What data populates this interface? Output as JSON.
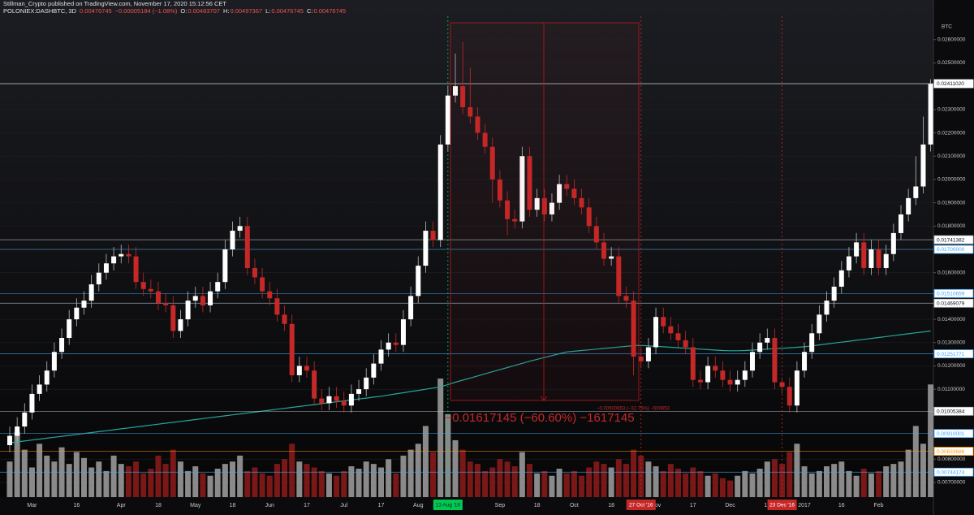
{
  "header": {
    "publisher": "Stillman_Crypto published on TradingView.com, November 17, 2020 15:12:56 CET",
    "symbol": "POLONIEX:DASHBTC, 3D",
    "last": "0.00476745",
    "change": "−0.00005184 (−1.08%)",
    "ohlc": [
      {
        "key": "O:",
        "value": "0.00483707"
      },
      {
        "key": "H:",
        "value": "0.00497367"
      },
      {
        "key": "L:",
        "value": "0.00476745"
      },
      {
        "key": "C:",
        "value": "0.00476745"
      }
    ]
  },
  "chart_data": {
    "type": "candlestick",
    "currency": "BTC",
    "categories": [
      null,
      null,
      null,
      "Mar",
      null,
      null,
      null,
      null,
      null,
      "16",
      null,
      null,
      null,
      null,
      null,
      "Apr",
      null,
      null,
      null,
      null,
      "18",
      null,
      null,
      null,
      null,
      "May",
      null,
      null,
      null,
      null,
      "18",
      null,
      null,
      null,
      null,
      "Jun",
      null,
      null,
      null,
      null,
      "17",
      null,
      null,
      null,
      null,
      "Jul",
      null,
      null,
      null,
      null,
      "17",
      null,
      null,
      null,
      null,
      "Aug",
      null,
      null,
      null,
      "13 Aug '16",
      null,
      null,
      null,
      null,
      null,
      null,
      "Sep",
      null,
      null,
      null,
      null,
      "18",
      null,
      null,
      null,
      null,
      "Oct",
      null,
      null,
      null,
      null,
      "18",
      null,
      null,
      null,
      "27 Oct '16",
      null,
      "Nov",
      null,
      null,
      null,
      null,
      "17",
      null,
      null,
      null,
      null,
      "Dec",
      null,
      null,
      null,
      null,
      "17",
      null,
      "23 Dec '16",
      null,
      null,
      "2017",
      null,
      null,
      null,
      null,
      "16",
      null,
      null,
      null,
      null,
      "Feb",
      null,
      null,
      null,
      null,
      null,
      null,
      null
    ],
    "open": [
      0.0086,
      0.009,
      0.0094,
      0.01,
      0.0108,
      0.0112,
      0.0118,
      0.0126,
      0.0132,
      0.014,
      0.0145,
      0.0148,
      0.0155,
      0.016,
      0.0164,
      0.0167,
      0.0168,
      0.0167,
      0.0156,
      0.0153,
      0.0152,
      0.0147,
      0.0146,
      0.0135,
      0.014,
      0.0148,
      0.015,
      0.0146,
      0.0152,
      0.0156,
      0.017,
      0.0178,
      0.018,
      0.0162,
      0.0158,
      0.0152,
      0.0149,
      0.0142,
      0.0138,
      0.0116,
      0.012,
      0.0118,
      0.0106,
      0.0104,
      0.0107,
      0.0105,
      0.0103,
      0.0108,
      0.011,
      0.0115,
      0.0121,
      0.0127,
      0.013,
      0.0129,
      0.014,
      0.015,
      0.0163,
      0.0178,
      0.0174,
      0.0215,
      0.0236,
      0.024,
      0.0231,
      0.0227,
      0.022,
      0.0214,
      0.02,
      0.0191,
      0.0183,
      0.0182,
      0.021,
      0.0187,
      0.0192,
      0.0185,
      0.019,
      0.0198,
      0.0196,
      0.0192,
      0.0188,
      0.018,
      0.0173,
      0.0166,
      0.0167,
      0.015,
      0.0148,
      0.0124,
      0.0122,
      0.0128,
      0.0141,
      0.0137,
      0.0134,
      0.0131,
      0.0128,
      0.0114,
      0.0113,
      0.012,
      0.0118,
      0.0114,
      0.0112,
      0.0114,
      0.0118,
      0.0126,
      0.013,
      0.0132,
      0.0113,
      0.0111,
      0.0103,
      0.0118,
      0.0126,
      0.0134,
      0.0142,
      0.0148,
      0.0154,
      0.0161,
      0.0167,
      0.0173,
      0.0162,
      0.017,
      0.0162,
      0.0168,
      0.0177,
      0.0185,
      0.0192,
      0.0197,
      0.0215
    ],
    "high": [
      0.0094,
      0.0098,
      0.0104,
      0.0112,
      0.0116,
      0.0122,
      0.013,
      0.0136,
      0.0144,
      0.0149,
      0.0152,
      0.0159,
      0.0164,
      0.0168,
      0.0171,
      0.0172,
      0.0172,
      0.0171,
      0.016,
      0.0157,
      0.0156,
      0.0151,
      0.015,
      0.0144,
      0.0152,
      0.0154,
      0.0154,
      0.0156,
      0.016,
      0.0174,
      0.0182,
      0.0184,
      0.0184,
      0.0166,
      0.0162,
      0.0156,
      0.0153,
      0.0146,
      0.0142,
      0.0124,
      0.0124,
      0.0122,
      0.011,
      0.0111,
      0.0111,
      0.0109,
      0.0112,
      0.0114,
      0.0119,
      0.0125,
      0.0131,
      0.0134,
      0.0134,
      0.0144,
      0.0154,
      0.0167,
      0.0182,
      0.0182,
      0.0219,
      0.024,
      0.0254,
      0.0259,
      0.0248,
      0.0231,
      0.0224,
      0.0218,
      0.0204,
      0.0195,
      0.0187,
      0.0214,
      0.0214,
      0.0196,
      0.0196,
      0.0194,
      0.0202,
      0.0202,
      0.02,
      0.0196,
      0.0192,
      0.0184,
      0.0177,
      0.0171,
      0.0171,
      0.0154,
      0.0152,
      0.0128,
      0.0132,
      0.0145,
      0.0145,
      0.0141,
      0.0138,
      0.0135,
      0.0132,
      0.0118,
      0.0124,
      0.0124,
      0.0122,
      0.0118,
      0.0118,
      0.0122,
      0.013,
      0.0134,
      0.0136,
      0.0136,
      0.0115,
      0.0115,
      0.0122,
      0.013,
      0.0138,
      0.0146,
      0.0152,
      0.0158,
      0.0165,
      0.0171,
      0.0177,
      0.0177,
      0.0174,
      0.0174,
      0.0172,
      0.0181,
      0.0189,
      0.0196,
      0.021,
      0.0227,
      0.0243
    ],
    "low": [
      0.0083,
      0.0087,
      0.0091,
      0.0097,
      0.0105,
      0.0109,
      0.0115,
      0.0123,
      0.0129,
      0.0137,
      0.0142,
      0.0145,
      0.0152,
      0.0157,
      0.0161,
      0.0164,
      0.0164,
      0.0153,
      0.015,
      0.0149,
      0.0144,
      0.0143,
      0.0132,
      0.0132,
      0.0137,
      0.0145,
      0.0143,
      0.0143,
      0.0149,
      0.0153,
      0.0167,
      0.0175,
      0.0159,
      0.0155,
      0.0149,
      0.0146,
      0.0139,
      0.0135,
      0.0113,
      0.0113,
      0.0115,
      0.0103,
      0.0101,
      0.0101,
      0.0102,
      0.01,
      0.01,
      0.0105,
      0.0107,
      0.0112,
      0.0118,
      0.0124,
      0.0126,
      0.0126,
      0.0137,
      0.0147,
      0.016,
      0.0171,
      0.0171,
      0.0212,
      0.0233,
      0.0228,
      0.0224,
      0.0217,
      0.0211,
      0.019,
      0.0188,
      0.0176,
      0.0179,
      0.0179,
      0.0184,
      0.0184,
      0.0182,
      0.0182,
      0.0187,
      0.0193,
      0.0189,
      0.0185,
      0.0177,
      0.017,
      0.0163,
      0.0163,
      0.0147,
      0.0145,
      0.0116,
      0.0119,
      0.0119,
      0.0125,
      0.0134,
      0.0131,
      0.0128,
      0.0125,
      0.0111,
      0.011,
      0.011,
      0.0115,
      0.0111,
      0.0109,
      0.0109,
      0.0111,
      0.0115,
      0.0123,
      0.0127,
      0.011,
      0.0108,
      0.01,
      0.01,
      0.0115,
      0.0123,
      0.0131,
      0.0139,
      0.0145,
      0.0151,
      0.0158,
      0.0164,
      0.0159,
      0.0159,
      0.0159,
      0.0159,
      0.0165,
      0.0174,
      0.0182,
      0.0189,
      0.0194,
      0.0212
    ],
    "close": [
      0.009,
      0.0094,
      0.01,
      0.0108,
      0.0112,
      0.0118,
      0.0126,
      0.0132,
      0.014,
      0.0145,
      0.0148,
      0.0155,
      0.016,
      0.0164,
      0.0167,
      0.0168,
      0.0167,
      0.0156,
      0.0153,
      0.0152,
      0.0147,
      0.0146,
      0.0135,
      0.014,
      0.0148,
      0.015,
      0.0146,
      0.0152,
      0.0156,
      0.017,
      0.0178,
      0.018,
      0.0162,
      0.0158,
      0.0152,
      0.0149,
      0.0142,
      0.0138,
      0.0116,
      0.012,
      0.0118,
      0.0106,
      0.0104,
      0.0107,
      0.0105,
      0.0103,
      0.0108,
      0.011,
      0.0115,
      0.0121,
      0.0127,
      0.013,
      0.0129,
      0.014,
      0.015,
      0.0163,
      0.0178,
      0.0174,
      0.0215,
      0.0236,
      0.024,
      0.0231,
      0.0227,
      0.022,
      0.0214,
      0.02,
      0.0191,
      0.0183,
      0.0182,
      0.021,
      0.0187,
      0.0192,
      0.0185,
      0.019,
      0.0198,
      0.0196,
      0.0192,
      0.0188,
      0.018,
      0.0173,
      0.0166,
      0.0167,
      0.015,
      0.0148,
      0.0124,
      0.0122,
      0.0128,
      0.0141,
      0.0137,
      0.0134,
      0.0131,
      0.0128,
      0.0114,
      0.0113,
      0.012,
      0.0118,
      0.0114,
      0.0112,
      0.0114,
      0.0118,
      0.0126,
      0.013,
      0.0132,
      0.0113,
      0.0111,
      0.0103,
      0.0118,
      0.0126,
      0.0134,
      0.0142,
      0.0148,
      0.0154,
      0.0161,
      0.0167,
      0.0173,
      0.0162,
      0.017,
      0.0162,
      0.0168,
      0.0177,
      0.0185,
      0.0192,
      0.0197,
      0.0215,
      0.0241
    ],
    "volume": [
      30,
      55,
      40,
      25,
      45,
      35,
      30,
      42,
      28,
      38,
      33,
      25,
      30,
      22,
      35,
      28,
      26,
      30,
      20,
      24,
      35,
      28,
      40,
      30,
      22,
      26,
      20,
      18,
      24,
      28,
      30,
      35,
      22,
      25,
      20,
      18,
      28,
      32,
      45,
      30,
      28,
      25,
      22,
      20,
      18,
      22,
      26,
      24,
      30,
      28,
      25,
      32,
      20,
      35,
      40,
      45,
      60,
      38,
      100,
      70,
      48,
      40,
      30,
      28,
      22,
      25,
      32,
      30,
      26,
      38,
      28,
      20,
      22,
      18,
      24,
      20,
      22,
      18,
      25,
      30,
      28,
      25,
      32,
      28,
      40,
      35,
      30,
      26,
      22,
      28,
      24,
      20,
      25,
      22,
      18,
      20,
      16,
      14,
      18,
      22,
      20,
      24,
      30,
      32,
      28,
      38,
      45,
      26,
      20,
      22,
      26,
      28,
      30,
      22,
      18,
      24,
      20,
      22,
      26,
      28,
      30,
      40,
      60,
      45,
      95
    ],
    "volume_lim": [
      0,
      100
    ],
    "up_color": "#ffffff",
    "down_color": "#c62828",
    "volume_up_color": "#8a8a8a",
    "volume_down_color": "#7a1818",
    "ma": {
      "color": "#26a69a",
      "values": [
        0.0087,
        0.00874,
        0.00878,
        0.00882,
        0.00886,
        0.0089,
        0.00894,
        0.00898,
        0.00902,
        0.00906,
        0.0091,
        0.00914,
        0.00918,
        0.00922,
        0.00926,
        0.0093,
        0.00934,
        0.00938,
        0.00942,
        0.00946,
        0.0095,
        0.00954,
        0.00958,
        0.00962,
        0.00966,
        0.0097,
        0.00974,
        0.00978,
        0.00982,
        0.00986,
        0.0099,
        0.00994,
        0.00998,
        0.01002,
        0.01006,
        0.0101,
        0.01014,
        0.01018,
        0.01022,
        0.01026,
        0.0103,
        0.01034,
        0.01038,
        0.01042,
        0.01046,
        0.0105,
        0.01054,
        0.01058,
        0.01062,
        0.01066,
        0.0107,
        0.01075,
        0.0108,
        0.01085,
        0.0109,
        0.01095,
        0.011,
        0.01105,
        0.0111,
        0.0112,
        0.0113,
        0.01139,
        0.01148,
        0.01157,
        0.01166,
        0.01175,
        0.01184,
        0.01193,
        0.01202,
        0.01211,
        0.0122,
        0.01228,
        0.01236,
        0.01244,
        0.01252,
        0.0126,
        0.01263,
        0.01266,
        0.01269,
        0.01272,
        0.01275,
        0.01278,
        0.01281,
        0.01284,
        0.01287,
        0.01288,
        0.01286,
        0.01284,
        0.01282,
        0.0128,
        0.01278,
        0.01276,
        0.01274,
        0.01272,
        0.0127,
        0.01268,
        0.01266,
        0.01265,
        0.01265,
        0.01266,
        0.01268,
        0.0127,
        0.01272,
        0.01274,
        0.01276,
        0.01278,
        0.0128,
        0.01282,
        0.01286,
        0.0129,
        0.01294,
        0.01298,
        0.01302,
        0.01306,
        0.0131,
        0.01314,
        0.01318,
        0.01322,
        0.01326,
        0.0133,
        0.01334,
        0.01338,
        0.01342,
        0.01346,
        0.0135
      ]
    },
    "ylim": [
      0.00637,
      0.0277
    ],
    "yticks": [
      {
        "value": 0.026,
        "label": "0.02600000"
      },
      {
        "value": 0.025,
        "label": "0.02500000"
      },
      {
        "value": 0.023,
        "label": "0.02300000"
      },
      {
        "value": 0.022,
        "label": "0.02200000"
      },
      {
        "value": 0.021,
        "label": "0.02100000"
      },
      {
        "value": 0.02,
        "label": "0.02000000"
      },
      {
        "value": 0.019,
        "label": "0.01900000"
      },
      {
        "value": 0.018,
        "label": "0.01800000"
      },
      {
        "value": 0.016,
        "label": "0.01600000"
      },
      {
        "value": 0.014,
        "label": "0.01400000"
      },
      {
        "value": 0.013,
        "label": "0.01300000"
      },
      {
        "value": 0.012,
        "label": "0.01200000"
      },
      {
        "value": 0.011,
        "label": "0.01100000"
      },
      {
        "value": 0.008,
        "label": "0.00800000"
      },
      {
        "value": 0.007,
        "label": "0.00700000"
      }
    ],
    "grid": true,
    "price_lines": [
      {
        "value": 0.0241102,
        "label": "0.02411020",
        "color": "#ffffff"
      },
      {
        "value": 0.01741382,
        "label": "0.01741382",
        "color": "#b0bec5"
      },
      {
        "value": 0.017,
        "label": "0.01700000",
        "color": "#42a5f5"
      },
      {
        "value": 0.01510659,
        "label": "0.01510659",
        "color": "#42a5f5"
      },
      {
        "value": 0.01469079,
        "label": "0.01469079",
        "color": "#b0bec5"
      },
      {
        "value": 0.01251771,
        "label": "0.01251771",
        "color": "#42a5f5"
      },
      {
        "value": 0.01005384,
        "label": "0.01005384",
        "color": "#b0bec5"
      },
      {
        "value": 0.00910001,
        "label": "0.00910001",
        "color": "#42a5f5"
      },
      {
        "value": 0.00833686,
        "label": "0.00833686",
        "color": "#ff9800"
      },
      {
        "value": 0.00744174,
        "label": "0.00744174",
        "color": "#42a5f5"
      }
    ],
    "marker_colors": {
      "13 Aug '16": "#00c853",
      "27 Oct '16": "#c62828",
      "23 Dec '16": "#c62828"
    },
    "annotations": {
      "range_small": "−0.00500653 (−32.75%) −500653",
      "range_big": "−0.01617145 (−60.60%) −1617145"
    }
  }
}
